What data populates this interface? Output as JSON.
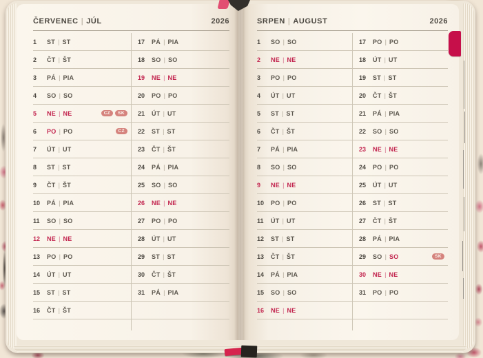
{
  "year": "2026",
  "separator": "|",
  "colors": {
    "accent_red": "#c2244e",
    "badge_bg": "#d5837d",
    "tab": "#c60f4a"
  },
  "badges_legend": [
    "CZ",
    "SK"
  ],
  "months": [
    {
      "title_primary": "ČERVENEC",
      "title_secondary": "JÚL",
      "year": "2026",
      "columns": [
        [
          {
            "day": "1",
            "czech": "ST",
            "slovak": "ST",
            "highlight": "none",
            "badges": []
          },
          {
            "day": "2",
            "czech": "ČT",
            "slovak": "ŠT",
            "highlight": "none",
            "badges": []
          },
          {
            "day": "3",
            "czech": "PÁ",
            "slovak": "PIA",
            "highlight": "none",
            "badges": []
          },
          {
            "day": "4",
            "czech": "SO",
            "slovak": "SO",
            "highlight": "none",
            "badges": []
          },
          {
            "day": "5",
            "czech": "NE",
            "slovak": "NE",
            "highlight": "full",
            "badges": [
              "CZ",
              "SK"
            ]
          },
          {
            "day": "6",
            "czech": "PO",
            "slovak": "PO",
            "highlight": "primary",
            "badges": [
              "CZ"
            ]
          },
          {
            "day": "7",
            "czech": "ÚT",
            "slovak": "UT",
            "highlight": "none",
            "badges": []
          },
          {
            "day": "8",
            "czech": "ST",
            "slovak": "ST",
            "highlight": "none",
            "badges": []
          },
          {
            "day": "9",
            "czech": "ČT",
            "slovak": "ŠT",
            "highlight": "none",
            "badges": []
          },
          {
            "day": "10",
            "czech": "PÁ",
            "slovak": "PIA",
            "highlight": "none",
            "badges": []
          },
          {
            "day": "11",
            "czech": "SO",
            "slovak": "SO",
            "highlight": "none",
            "badges": []
          },
          {
            "day": "12",
            "czech": "NE",
            "slovak": "NE",
            "highlight": "full",
            "badges": []
          },
          {
            "day": "13",
            "czech": "PO",
            "slovak": "PO",
            "highlight": "none",
            "badges": []
          },
          {
            "day": "14",
            "czech": "ÚT",
            "slovak": "UT",
            "highlight": "none",
            "badges": []
          },
          {
            "day": "15",
            "czech": "ST",
            "slovak": "ST",
            "highlight": "none",
            "badges": []
          },
          {
            "day": "16",
            "czech": "ČT",
            "slovak": "ŠT",
            "highlight": "none",
            "badges": []
          }
        ],
        [
          {
            "day": "17",
            "czech": "PÁ",
            "slovak": "PIA",
            "highlight": "none",
            "badges": []
          },
          {
            "day": "18",
            "czech": "SO",
            "slovak": "SO",
            "highlight": "none",
            "badges": []
          },
          {
            "day": "19",
            "czech": "NE",
            "slovak": "NE",
            "highlight": "full",
            "badges": []
          },
          {
            "day": "20",
            "czech": "PO",
            "slovak": "PO",
            "highlight": "none",
            "badges": []
          },
          {
            "day": "21",
            "czech": "ÚT",
            "slovak": "UT",
            "highlight": "none",
            "badges": []
          },
          {
            "day": "22",
            "czech": "ST",
            "slovak": "ST",
            "highlight": "none",
            "badges": []
          },
          {
            "day": "23",
            "czech": "ČT",
            "slovak": "ŠT",
            "highlight": "none",
            "badges": []
          },
          {
            "day": "24",
            "czech": "PÁ",
            "slovak": "PIA",
            "highlight": "none",
            "badges": []
          },
          {
            "day": "25",
            "czech": "SO",
            "slovak": "SO",
            "highlight": "none",
            "badges": []
          },
          {
            "day": "26",
            "czech": "NE",
            "slovak": "NE",
            "highlight": "full",
            "badges": []
          },
          {
            "day": "27",
            "czech": "PO",
            "slovak": "PO",
            "highlight": "none",
            "badges": []
          },
          {
            "day": "28",
            "czech": "ÚT",
            "slovak": "UT",
            "highlight": "none",
            "badges": []
          },
          {
            "day": "29",
            "czech": "ST",
            "slovak": "ST",
            "highlight": "none",
            "badges": []
          },
          {
            "day": "30",
            "czech": "ČT",
            "slovak": "ŠT",
            "highlight": "none",
            "badges": []
          },
          {
            "day": "31",
            "czech": "PÁ",
            "slovak": "PIA",
            "highlight": "none",
            "badges": []
          },
          null
        ]
      ]
    },
    {
      "title_primary": "SRPEN",
      "title_secondary": "AUGUST",
      "year": "2026",
      "columns": [
        [
          {
            "day": "1",
            "czech": "SO",
            "slovak": "SO",
            "highlight": "none",
            "badges": []
          },
          {
            "day": "2",
            "czech": "NE",
            "slovak": "NE",
            "highlight": "full",
            "badges": []
          },
          {
            "day": "3",
            "czech": "PO",
            "slovak": "PO",
            "highlight": "none",
            "badges": []
          },
          {
            "day": "4",
            "czech": "ÚT",
            "slovak": "UT",
            "highlight": "none",
            "badges": []
          },
          {
            "day": "5",
            "czech": "ST",
            "slovak": "ST",
            "highlight": "none",
            "badges": []
          },
          {
            "day": "6",
            "czech": "ČT",
            "slovak": "ŠT",
            "highlight": "none",
            "badges": []
          },
          {
            "day": "7",
            "czech": "PÁ",
            "slovak": "PIA",
            "highlight": "none",
            "badges": []
          },
          {
            "day": "8",
            "czech": "SO",
            "slovak": "SO",
            "highlight": "none",
            "badges": []
          },
          {
            "day": "9",
            "czech": "NE",
            "slovak": "NE",
            "highlight": "full",
            "badges": []
          },
          {
            "day": "10",
            "czech": "PO",
            "slovak": "PO",
            "highlight": "none",
            "badges": []
          },
          {
            "day": "11",
            "czech": "ÚT",
            "slovak": "UT",
            "highlight": "none",
            "badges": []
          },
          {
            "day": "12",
            "czech": "ST",
            "slovak": "ST",
            "highlight": "none",
            "badges": []
          },
          {
            "day": "13",
            "czech": "ČT",
            "slovak": "ŠT",
            "highlight": "none",
            "badges": []
          },
          {
            "day": "14",
            "czech": "PÁ",
            "slovak": "PIA",
            "highlight": "none",
            "badges": []
          },
          {
            "day": "15",
            "czech": "SO",
            "slovak": "SO",
            "highlight": "none",
            "badges": []
          },
          {
            "day": "16",
            "czech": "NE",
            "slovak": "NE",
            "highlight": "full",
            "badges": []
          }
        ],
        [
          {
            "day": "17",
            "czech": "PO",
            "slovak": "PO",
            "highlight": "none",
            "badges": []
          },
          {
            "day": "18",
            "czech": "ÚT",
            "slovak": "UT",
            "highlight": "none",
            "badges": []
          },
          {
            "day": "19",
            "czech": "ST",
            "slovak": "ST",
            "highlight": "none",
            "badges": []
          },
          {
            "day": "20",
            "czech": "ČT",
            "slovak": "ŠT",
            "highlight": "none",
            "badges": []
          },
          {
            "day": "21",
            "czech": "PÁ",
            "slovak": "PIA",
            "highlight": "none",
            "badges": []
          },
          {
            "day": "22",
            "czech": "SO",
            "slovak": "SO",
            "highlight": "none",
            "badges": []
          },
          {
            "day": "23",
            "czech": "NE",
            "slovak": "NE",
            "highlight": "full",
            "badges": []
          },
          {
            "day": "24",
            "czech": "PO",
            "slovak": "PO",
            "highlight": "none",
            "badges": []
          },
          {
            "day": "25",
            "czech": "ÚT",
            "slovak": "UT",
            "highlight": "none",
            "badges": []
          },
          {
            "day": "26",
            "czech": "ST",
            "slovak": "ST",
            "highlight": "none",
            "badges": []
          },
          {
            "day": "27",
            "czech": "ČT",
            "slovak": "ŠT",
            "highlight": "none",
            "badges": []
          },
          {
            "day": "28",
            "czech": "PÁ",
            "slovak": "PIA",
            "highlight": "none",
            "badges": []
          },
          {
            "day": "29",
            "czech": "SO",
            "slovak": "SO",
            "highlight": "secondary",
            "badges": [
              "SK"
            ]
          },
          {
            "day": "30",
            "czech": "NE",
            "slovak": "NE",
            "highlight": "full",
            "badges": []
          },
          {
            "day": "31",
            "czech": "PO",
            "slovak": "PO",
            "highlight": "none",
            "badges": []
          },
          null
        ]
      ]
    }
  ]
}
